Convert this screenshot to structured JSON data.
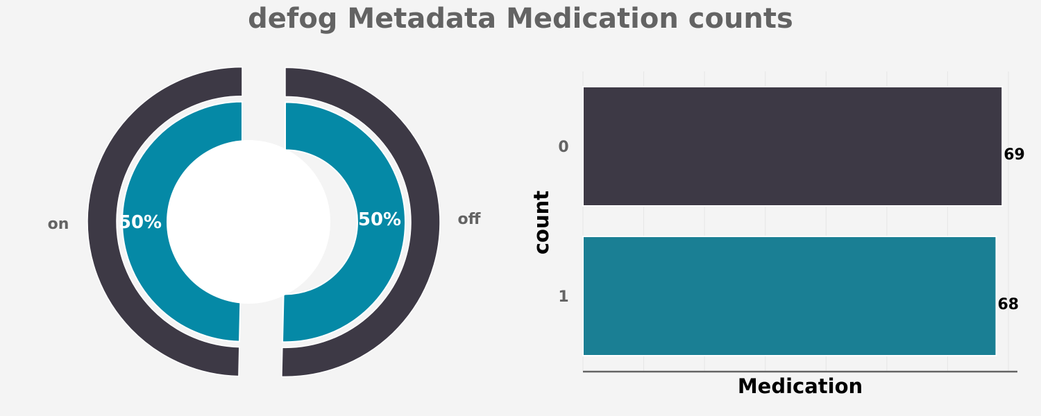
{
  "title": "defog Metadata Medication counts",
  "colors": {
    "dark": "#3d3945",
    "teal": "#0589a6",
    "teal_bar": "#1a7f94",
    "background": "#f4f4f4",
    "label_gray": "#636363",
    "white": "#ffffff"
  },
  "chart_data": [
    {
      "type": "pie",
      "style": "nested-donut",
      "outer_ring": {
        "labels": [
          "on",
          "off"
        ],
        "values": [
          68,
          69
        ],
        "color": "#3d3945"
      },
      "inner_ring": {
        "values": [
          68,
          69
        ],
        "percent_labels": [
          "50%",
          "50%"
        ],
        "color": "#0589a6"
      }
    },
    {
      "type": "bar",
      "orientation": "horizontal",
      "categories": [
        "0",
        "1"
      ],
      "values": [
        69,
        68
      ],
      "data_labels": [
        "69",
        "68"
      ],
      "colors": [
        "#3d3945",
        "#1a7f94"
      ],
      "xlabel": "Medication",
      "ylabel": "count",
      "xlim": [
        0,
        70
      ],
      "grid": true
    }
  ]
}
